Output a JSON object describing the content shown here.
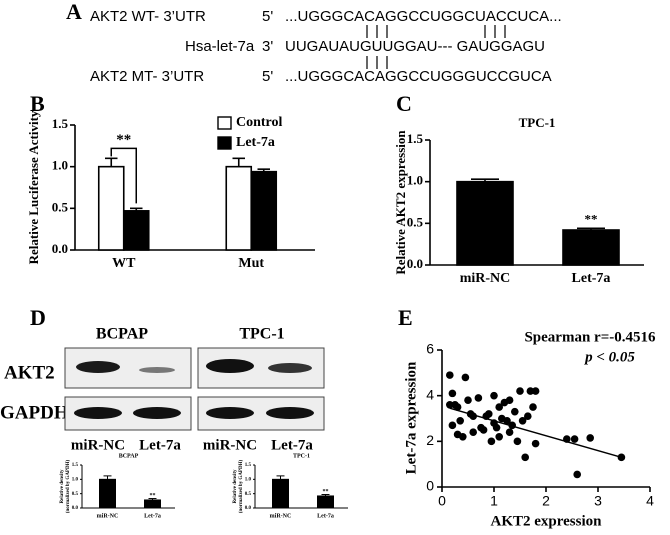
{
  "panel_labels": [
    "A",
    "B",
    "C",
    "D",
    "E"
  ],
  "sequences": [
    {
      "name": "AKT2 WT- 3’UTR",
      "end": "5'",
      "sequence": "...UGGGCACAGGCCUGGCUACCUCA..."
    },
    {
      "name": "Hsa-let-7a",
      "end": "3'",
      "sequence": "UUGAUAUGUUGGAU--- GAUGGAGU"
    },
    {
      "name": "AKT2 MT- 3’UTR",
      "end": "5'",
      "sequence": "...UGGGCACAGGCCUGGGUCCGUCA"
    }
  ],
  "blot": {
    "cell_lines": [
      "BCPAP",
      "TPC-1"
    ],
    "proteins": [
      "AKT2",
      "GAPDH"
    ],
    "lanes": [
      "miR-NC",
      "Let-7a"
    ]
  },
  "chart_data": [
    {
      "type": "bar",
      "ylabel": "Relative Luciferase Activity",
      "categories": [
        "WT",
        "Mut"
      ],
      "series": [
        {
          "name": "Control",
          "color": "#ffffff",
          "values": [
            1.0,
            1.0
          ],
          "errors": [
            0.1,
            0.1
          ]
        },
        {
          "name": "Let-7a",
          "color": "#000000",
          "values": [
            0.47,
            0.94
          ],
          "errors": [
            0.03,
            0.03
          ]
        }
      ],
      "ylim": [
        0,
        1.5
      ],
      "yticks": [
        {
          "value": 0,
          "label": "0.0"
        },
        {
          "value": 0.5,
          "label": "0.5"
        },
        {
          "value": 1,
          "label": "1.0"
        },
        {
          "value": 1.5,
          "label": "1.5"
        }
      ],
      "annotation": "**"
    },
    {
      "type": "bar",
      "title": "TPC-1",
      "ylabel": "Relative AKT2 expression",
      "categories": [
        "miR-NC",
        "Let-7a"
      ],
      "values": [
        1.0,
        0.42
      ],
      "errors": [
        0.03,
        0.02
      ],
      "color": "#000000",
      "ylim": [
        0,
        1.5
      ],
      "yticks": [
        {
          "value": 0,
          "label": "0.0"
        },
        {
          "value": 0.5,
          "label": "0.5"
        },
        {
          "value": 1,
          "label": "1.0"
        },
        {
          "value": 1.5,
          "label": "1.5"
        }
      ],
      "annotation": "**"
    },
    {
      "type": "bar",
      "title": "BCPAP",
      "ylabel": [
        "Relative density",
        "(normalized by GAPDH)"
      ],
      "categories": [
        "miR-NC",
        "Let-7a"
      ],
      "values": [
        1.0,
        0.28
      ],
      "errors": [
        0.12,
        0.05
      ],
      "color": "#000000",
      "ylim": [
        0,
        1.5
      ],
      "yticks": [
        {
          "value": 0,
          "label": "0.0"
        },
        {
          "value": 0.5,
          "label": "0.5"
        },
        {
          "value": 1,
          "label": "1.0"
        },
        {
          "value": 1.5,
          "label": "1.5"
        }
      ],
      "annotation": "**"
    },
    {
      "type": "bar",
      "title": "TPC-1",
      "ylabel": [
        "Relative density",
        "(normalized by GAPDH)"
      ],
      "categories": [
        "miR-NC",
        "Let-7a"
      ],
      "values": [
        1.0,
        0.42
      ],
      "errors": [
        0.12,
        0.05
      ],
      "color": "#000000",
      "ylim": [
        0,
        1.5
      ],
      "yticks": [
        {
          "value": 0,
          "label": "0.0"
        },
        {
          "value": 0.5,
          "label": "0.5"
        },
        {
          "value": 1,
          "label": "1.0"
        },
        {
          "value": 1.5,
          "label": "1.5"
        }
      ],
      "annotation": "**"
    },
    {
      "type": "scatter",
      "xlabel": "AKT2 expression",
      "ylabel": "Let-7a expression",
      "x": [
        0.15,
        0.2,
        0.25,
        0.3,
        0.2,
        0.35,
        0.4,
        0.45,
        0.5,
        0.55,
        0.6,
        0.7,
        0.75,
        0.8,
        0.9,
        0.95,
        1.0,
        1.05,
        1.1,
        1.1,
        1.15,
        1.2,
        1.25,
        1.3,
        1.3,
        1.35,
        1.4,
        1.45,
        1.5,
        1.55,
        1.6,
        1.65,
        1.7,
        1.75,
        1.8,
        1.8,
        0.15,
        0.6,
        0.85,
        2.4,
        2.55,
        2.6,
        2.85,
        3.45,
        0.3,
        1.0
      ],
      "y": [
        4.9,
        4.1,
        3.6,
        3.5,
        2.7,
        2.9,
        2.2,
        4.8,
        3.8,
        3.2,
        2.4,
        3.9,
        2.6,
        2.5,
        3.2,
        2.0,
        4.0,
        2.6,
        3.5,
        2.2,
        3.0,
        3.7,
        2.9,
        3.8,
        2.4,
        2.7,
        3.3,
        2.0,
        4.2,
        2.9,
        1.3,
        3.1,
        4.2,
        3.5,
        4.2,
        1.9,
        3.6,
        3.1,
        3.1,
        2.1,
        2.1,
        0.55,
        2.15,
        1.3,
        2.3,
        2.8
      ],
      "color": "#000000",
      "trend_line": {
        "x": [
          0.15,
          3.45
        ],
        "y": [
          3.45,
          1.3
        ]
      },
      "xlim": [
        0,
        4
      ],
      "xticks": [
        0,
        1,
        2,
        3,
        4
      ],
      "ylim": [
        0,
        6
      ],
      "yticks": [
        0,
        2,
        4,
        6
      ],
      "annotations": [
        "Spearman r=-0.4516",
        "p < 0.05"
      ]
    }
  ]
}
